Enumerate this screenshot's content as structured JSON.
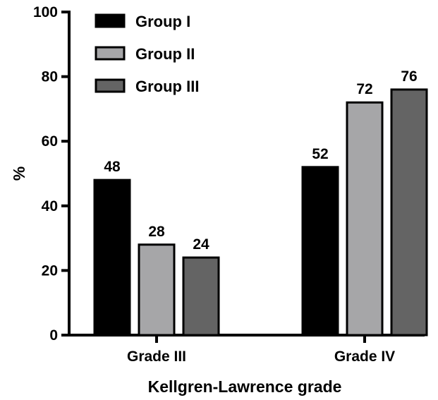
{
  "chart_data": {
    "type": "bar",
    "title": "",
    "xlabel": "Kellgren-Lawrence grade",
    "ylabel": "%",
    "ylim": [
      0,
      100
    ],
    "yticks": [
      0,
      20,
      40,
      60,
      80,
      100
    ],
    "grid": false,
    "legend_position": "top-left",
    "categories": [
      "Grade III",
      "Grade IV"
    ],
    "series": [
      {
        "name": "Group I",
        "values": [
          48,
          52
        ],
        "color": "#000000"
      },
      {
        "name": "Group II",
        "values": [
          28,
          72
        ],
        "color": "#a6a6a8"
      },
      {
        "name": "Group III",
        "values": [
          24,
          76
        ],
        "color": "#646464"
      }
    ]
  }
}
